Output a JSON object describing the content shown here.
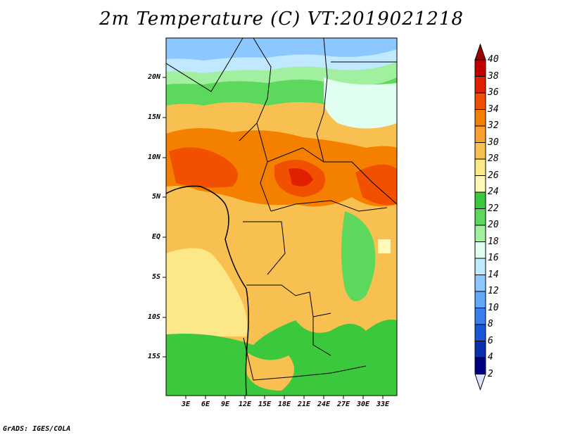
{
  "title": "2m Temperature (C) VT:2019021218",
  "credit": "GrADS: IGES/COLA",
  "lat_labels": [
    "20N",
    "15N",
    "10N",
    "5N",
    "EQ",
    "5S",
    "10S",
    "15S"
  ],
  "lon_labels": [
    "3E",
    "6E",
    "9E",
    "12E",
    "15E",
    "18E",
    "21E",
    "24E",
    "27E",
    "30E",
    "33E"
  ],
  "colorbar": {
    "labels": [
      "40",
      "38",
      "36",
      "34",
      "32",
      "30",
      "28",
      "26",
      "24",
      "22",
      "20",
      "18",
      "16",
      "14",
      "12",
      "10",
      "8",
      "6",
      "4",
      "2"
    ],
    "colors": [
      "#a00000",
      "#c00000",
      "#e02000",
      "#f05000",
      "#f58000",
      "#f8a030",
      "#f8c050",
      "#fce888",
      "#fff8b8",
      "#3cc83c",
      "#5cd85c",
      "#a0f0a0",
      "#e0fff0",
      "#c0e8ff",
      "#8cc8ff",
      "#60a8f8",
      "#3880f0",
      "#1858d8",
      "#0830b0",
      "#000080"
    ],
    "end_low": "#e0e0ff"
  }
}
